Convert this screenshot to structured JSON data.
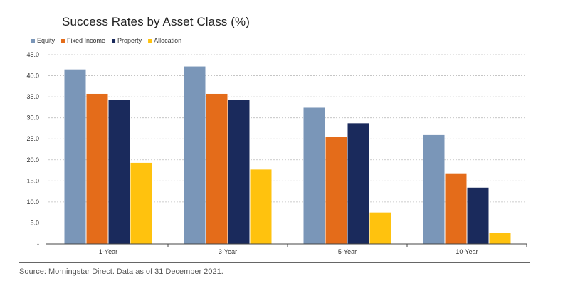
{
  "chart_data": {
    "type": "bar",
    "title": "Success Rates by Asset Class (%)",
    "xlabel": "",
    "ylabel": "",
    "categories": [
      "1-Year",
      "3-Year",
      "5-Year",
      "10-Year"
    ],
    "series": [
      {
        "name": "Equity",
        "color": "#7a96b8",
        "values": [
          41.5,
          42.2,
          32.4,
          25.9
        ]
      },
      {
        "name": "Fixed Income",
        "color": "#e46c1a",
        "values": [
          35.7,
          35.7,
          25.4,
          16.8
        ]
      },
      {
        "name": "Property",
        "color": "#1a2a5c",
        "values": [
          34.3,
          34.3,
          28.7,
          13.4
        ]
      },
      {
        "name": "Allocation",
        "color": "#ffc20e",
        "values": [
          19.3,
          17.7,
          7.5,
          2.7
        ]
      }
    ],
    "ylim": [
      0,
      45
    ],
    "yticks": [
      0,
      5,
      10,
      15,
      20,
      25,
      30,
      35,
      40,
      45
    ],
    "ytick_labels": [
      "-",
      "5.0",
      "10.0",
      "15.0",
      "20.0",
      "25.0",
      "30.0",
      "35.0",
      "40.0",
      "45.0"
    ],
    "grid": true,
    "legend": "top-left"
  },
  "source": "Source: Morningstar Direct. Data as of 31 December 2021."
}
